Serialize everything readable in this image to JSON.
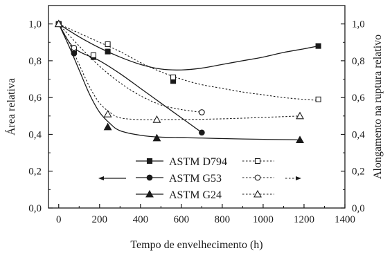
{
  "chart_data": {
    "type": "scatter",
    "xlabel": "Tempo de envelhecimento (h)",
    "ylabel_left": "Área relativa",
    "ylabel_right": "Alongamento na ruptura relativo",
    "xlim": [
      -50,
      1400
    ],
    "ylim": [
      0,
      1.1
    ],
    "xticks": [
      0,
      200,
      400,
      600,
      800,
      1000,
      1200,
      1400
    ],
    "yticks": [
      0.0,
      0.2,
      0.4,
      0.6,
      0.8,
      1.0
    ],
    "xtick_labels": [
      "0",
      "200",
      "400",
      "600",
      "800",
      "1000",
      "1200",
      "1400"
    ],
    "ytick_labels": [
      "0,0",
      "0,2",
      "0,4",
      "0,6",
      "0,8",
      "1,0"
    ],
    "grid": false,
    "legend_position": "bottom-center",
    "series": [
      {
        "name": "ASTM D794",
        "axis": "left",
        "marker": "square-filled",
        "line": "solid",
        "points": [
          [
            0,
            1.0
          ],
          [
            75,
            0.85
          ],
          [
            170,
            0.82
          ],
          [
            240,
            0.85
          ],
          [
            560,
            0.69
          ],
          [
            1270,
            0.88
          ]
        ],
        "curve": [
          [
            0,
            1.0
          ],
          [
            100,
            0.93
          ],
          [
            200,
            0.87
          ],
          [
            300,
            0.82
          ],
          [
            400,
            0.78
          ],
          [
            500,
            0.755
          ],
          [
            600,
            0.75
          ],
          [
            700,
            0.76
          ],
          [
            800,
            0.78
          ],
          [
            900,
            0.8
          ],
          [
            1000,
            0.82
          ],
          [
            1100,
            0.845
          ],
          [
            1200,
            0.865
          ],
          [
            1270,
            0.88
          ]
        ]
      },
      {
        "name": "ASTM D794",
        "axis": "right",
        "marker": "square-open",
        "line": "dotted",
        "points": [
          [
            0,
            1.0
          ],
          [
            75,
            0.86
          ],
          [
            170,
            0.83
          ],
          [
            240,
            0.89
          ],
          [
            560,
            0.71
          ],
          [
            1270,
            0.59
          ]
        ],
        "curve": [
          [
            0,
            1.0
          ],
          [
            100,
            0.95
          ],
          [
            200,
            0.9
          ],
          [
            300,
            0.85
          ],
          [
            400,
            0.79
          ],
          [
            500,
            0.74
          ],
          [
            600,
            0.7
          ],
          [
            700,
            0.67
          ],
          [
            800,
            0.65
          ],
          [
            900,
            0.63
          ],
          [
            1000,
            0.615
          ],
          [
            1100,
            0.6
          ],
          [
            1200,
            0.59
          ],
          [
            1270,
            0.585
          ]
        ]
      },
      {
        "name": "ASTM G53",
        "axis": "left",
        "marker": "circle-filled",
        "line": "solid",
        "points": [
          [
            0,
            1.0
          ],
          [
            75,
            0.84
          ],
          [
            700,
            0.41
          ]
        ],
        "curve": [
          [
            0,
            1.0
          ],
          [
            75,
            0.87
          ],
          [
            200,
            0.8
          ],
          [
            300,
            0.73
          ],
          [
            400,
            0.65
          ],
          [
            500,
            0.57
          ],
          [
            600,
            0.49
          ],
          [
            700,
            0.41
          ]
        ]
      },
      {
        "name": "ASTM G53",
        "axis": "right",
        "marker": "circle-open",
        "line": "dotted",
        "points": [
          [
            0,
            1.0
          ],
          [
            75,
            0.87
          ],
          [
            700,
            0.52
          ]
        ],
        "curve": [
          [
            0,
            1.0
          ],
          [
            100,
            0.88
          ],
          [
            200,
            0.77
          ],
          [
            300,
            0.68
          ],
          [
            400,
            0.61
          ],
          [
            500,
            0.56
          ],
          [
            600,
            0.535
          ],
          [
            700,
            0.52
          ]
        ]
      },
      {
        "name": "ASTM G24",
        "axis": "left",
        "marker": "triangle-filled",
        "line": "solid",
        "points": [
          [
            0,
            1.0
          ],
          [
            240,
            0.44
          ],
          [
            480,
            0.38
          ],
          [
            1180,
            0.37
          ]
        ],
        "curve": [
          [
            0,
            1.0
          ],
          [
            50,
            0.88
          ],
          [
            100,
            0.75
          ],
          [
            150,
            0.62
          ],
          [
            200,
            0.52
          ],
          [
            250,
            0.46
          ],
          [
            300,
            0.42
          ],
          [
            400,
            0.395
          ],
          [
            500,
            0.385
          ],
          [
            700,
            0.38
          ],
          [
            900,
            0.375
          ],
          [
            1180,
            0.37
          ]
        ]
      },
      {
        "name": "ASTM G24",
        "axis": "right",
        "marker": "triangle-open",
        "line": "dotted",
        "points": [
          [
            0,
            1.0
          ],
          [
            240,
            0.51
          ],
          [
            480,
            0.48
          ],
          [
            1180,
            0.5
          ]
        ],
        "curve": [
          [
            0,
            1.0
          ],
          [
            50,
            0.9
          ],
          [
            100,
            0.78
          ],
          [
            150,
            0.66
          ],
          [
            200,
            0.57
          ],
          [
            250,
            0.52
          ],
          [
            300,
            0.49
          ],
          [
            400,
            0.48
          ],
          [
            500,
            0.48
          ],
          [
            700,
            0.482
          ],
          [
            900,
            0.488
          ],
          [
            1180,
            0.5
          ]
        ]
      }
    ],
    "legend": [
      {
        "label": "ASTM D794"
      },
      {
        "label": "ASTM G53"
      },
      {
        "label": "ASTM G24"
      }
    ]
  }
}
